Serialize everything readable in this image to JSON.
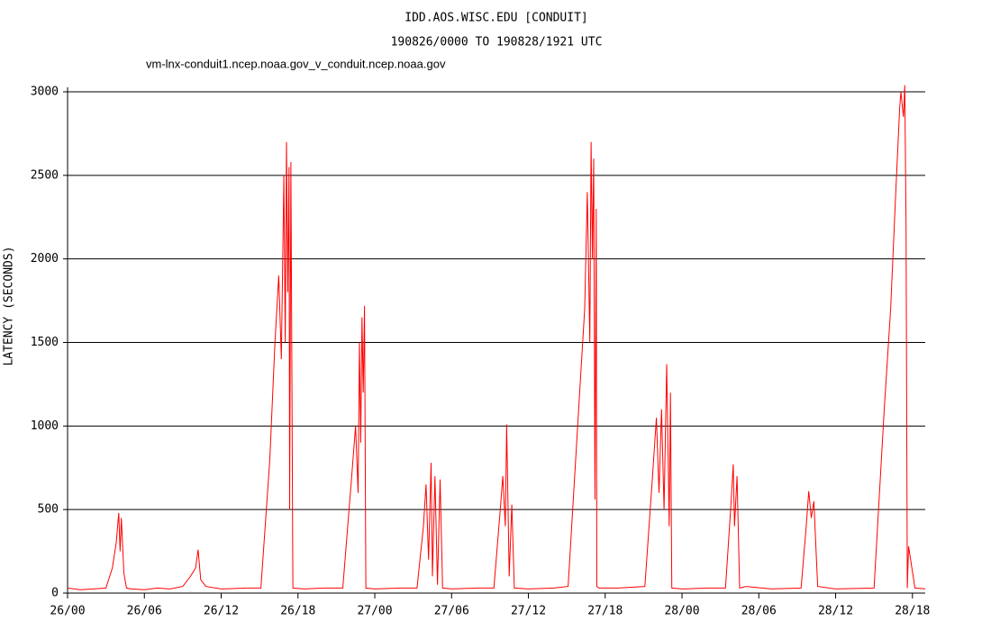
{
  "chart_data": {
    "type": "line",
    "title": "IDD.AOS.WISC.EDU [CONDUIT]",
    "subtitle": "190826/0000 TO 190828/1921 UTC",
    "y_label": "LATENCY (SECONDS)",
    "x": [
      0,
      1,
      2,
      3,
      3.5,
      3.8,
      4.0,
      4.1,
      4.2,
      4.4,
      4.6,
      5,
      6,
      7,
      8,
      9,
      9.6,
      10.0,
      10.2,
      10.4,
      10.8,
      12,
      14,
      15.1,
      15.8,
      16.2,
      16.5,
      16.7,
      16.9,
      17.0,
      17.1,
      17.2,
      17.3,
      17.35,
      17.45,
      17.6,
      18.5,
      20,
      21.5,
      22.2,
      22.5,
      22.7,
      22.8,
      22.9,
      23.0,
      23.1,
      23.2,
      23.3,
      24,
      26,
      27.3,
      27.8,
      28.0,
      28.2,
      28.4,
      28.5,
      28.7,
      28.9,
      29.1,
      29.3,
      30,
      32,
      33.3,
      33.8,
      34.0,
      34.2,
      34.3,
      34.5,
      34.7,
      34.9,
      36,
      38,
      39.1,
      40.0,
      40.4,
      40.6,
      40.8,
      40.9,
      41.0,
      41.1,
      41.2,
      41.3,
      41.35,
      41.5,
      43,
      45.1,
      45.7,
      46.0,
      46.2,
      46.4,
      46.6,
      46.8,
      47.0,
      47.1,
      47.2,
      48,
      50,
      51.4,
      51.8,
      52.0,
      52.1,
      52.3,
      52.5,
      53,
      55,
      57.3,
      57.7,
      57.9,
      58.1,
      58.3,
      58.6,
      60,
      63,
      63.8,
      64.3,
      64.7,
      65.0,
      65.1,
      65.3,
      65.4,
      65.5,
      65.6,
      65.7,
      66.2,
      67
    ],
    "series": [
      {
        "name": "vm-lnx-conduit1.ncep.noaa.gov_v_conduit.ncep.noaa.gov",
        "color": "#ff0000",
        "values": [
          30,
          20,
          25,
          30,
          150,
          300,
          480,
          250,
          450,
          120,
          30,
          25,
          20,
          30,
          25,
          40,
          100,
          150,
          260,
          80,
          40,
          25,
          30,
          30,
          800,
          1500,
          1900,
          1400,
          2500,
          1500,
          2700,
          1800,
          2550,
          500,
          2580,
          30,
          25,
          30,
          30,
          700,
          1000,
          600,
          1500,
          900,
          1650,
          1200,
          1720,
          30,
          25,
          30,
          30,
          400,
          650,
          200,
          780,
          100,
          700,
          50,
          680,
          30,
          25,
          30,
          30,
          500,
          700,
          400,
          1010,
          100,
          530,
          30,
          25,
          30,
          40,
          1200,
          1700,
          2400,
          1500,
          2700,
          2000,
          2600,
          560,
          2300,
          40,
          30,
          30,
          40,
          700,
          1050,
          600,
          1100,
          500,
          1370,
          400,
          1200,
          30,
          25,
          30,
          30,
          500,
          770,
          400,
          700,
          30,
          40,
          25,
          30,
          400,
          610,
          450,
          550,
          40,
          25,
          30,
          1100,
          1700,
          2400,
          2900,
          3000,
          2850,
          3040,
          2200,
          30,
          280,
          30,
          25
        ]
      }
    ],
    "xlim": [
      0,
      67
    ],
    "ylim": [
      0,
      3000
    ],
    "xticks": [
      {
        "value": 0,
        "label": "26/00"
      },
      {
        "value": 6,
        "label": "26/06"
      },
      {
        "value": 12,
        "label": "26/12"
      },
      {
        "value": 18,
        "label": "26/18"
      },
      {
        "value": 24,
        "label": "27/00"
      },
      {
        "value": 30,
        "label": "27/06"
      },
      {
        "value": 36,
        "label": "27/12"
      },
      {
        "value": 42,
        "label": "27/18"
      },
      {
        "value": 48,
        "label": "28/00"
      },
      {
        "value": 54,
        "label": "28/06"
      },
      {
        "value": 60,
        "label": "28/12"
      },
      {
        "value": 66,
        "label": "28/18"
      }
    ],
    "yticks": [
      0,
      500,
      1000,
      1500,
      2000,
      2500,
      3000
    ],
    "grid": true
  }
}
